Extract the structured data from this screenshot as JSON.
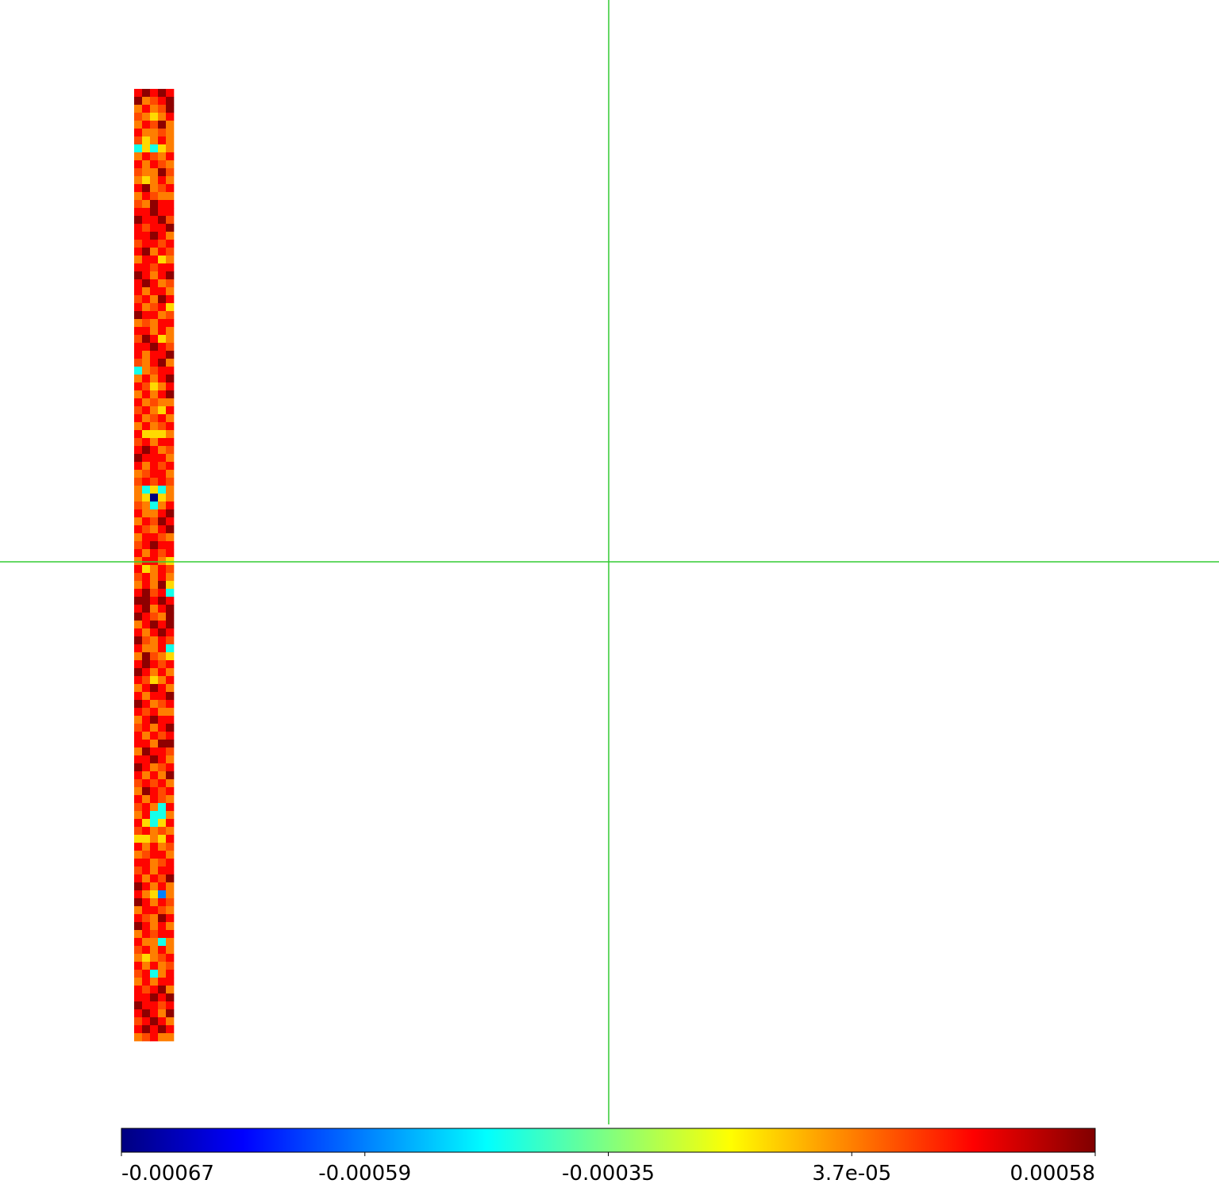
{
  "chart_data": {
    "type": "heatmap",
    "colormap": "jet",
    "colorbar_ticks": [
      -0.00067,
      -0.00059,
      -0.00035,
      {
        "value": 3.7e-05,
        "label": "3.7e-05"
      },
      0.00058
    ],
    "values": [
      [
        0.0003,
        0.00055,
        0.0003,
        0.00055,
        0.0003
      ],
      [
        0.00055,
        4e-05,
        0.00015,
        0.0003,
        0.00055
      ],
      [
        4e-05,
        0.0003,
        4e-05,
        0.00015,
        0.00055
      ],
      [
        0.00015,
        4e-05,
        -0.0001,
        4e-05,
        0.0003
      ],
      [
        4e-05,
        0.0003,
        0.00015,
        0.00055,
        4e-05
      ],
      [
        0.0003,
        4e-05,
        4e-05,
        0.00015,
        4e-05
      ],
      [
        0.00015,
        -0.0001,
        4e-05,
        0.0003,
        4e-05
      ],
      [
        -0.00045,
        -0.0001,
        -0.00045,
        -0.0001,
        4e-05
      ],
      [
        4e-05,
        0.0003,
        0.00015,
        4e-05,
        0.0003
      ],
      [
        0.0003,
        4e-05,
        0.0003,
        0.00015,
        4e-05
      ],
      [
        0.00015,
        4e-05,
        4e-05,
        0.00055,
        0.00015
      ],
      [
        4e-05,
        -0.0001,
        4e-05,
        0.0003,
        4e-05
      ],
      [
        0.0003,
        0.00055,
        4e-05,
        0.00015,
        0.0003
      ],
      [
        4e-05,
        0.0003,
        0.00015,
        4e-05,
        4e-05
      ],
      [
        0.00015,
        4e-05,
        0.00055,
        0.0003,
        0.0003
      ],
      [
        0.0003,
        0.0003,
        0.00055,
        0.0003,
        0.0003
      ],
      [
        0.00055,
        0.0003,
        0.0003,
        0.00055,
        0.00015
      ],
      [
        0.0003,
        0.00015,
        0.0003,
        0.0003,
        0.00055
      ],
      [
        0.0003,
        0.0003,
        0.00055,
        0.0003,
        4e-05
      ],
      [
        0.00015,
        0.0003,
        0.0003,
        0.00015,
        0.0003
      ],
      [
        0.0003,
        0.00055,
        4e-05,
        0.0003,
        0.00015
      ],
      [
        4e-05,
        0.0003,
        0.0003,
        -0.0001,
        4e-05
      ],
      [
        0.0003,
        0.0003,
        0.00015,
        0.0003,
        0.0003
      ],
      [
        0.00055,
        0.0003,
        4e-05,
        0.0003,
        0.00055
      ],
      [
        0.0003,
        0.00055,
        0.0003,
        4e-05,
        0.00015
      ],
      [
        0.0003,
        4e-05,
        0.0003,
        0.0003,
        4e-05
      ],
      [
        0.00015,
        0.0003,
        4e-05,
        0.00055,
        0.0003
      ],
      [
        0.0003,
        4e-05,
        0.00015,
        0.0003,
        -0.0001
      ],
      [
        0.00055,
        0.0003,
        0.0003,
        4e-05,
        0.00015
      ],
      [
        4e-05,
        0.00015,
        4e-05,
        0.0003,
        0.0003
      ],
      [
        0.0003,
        0.0003,
        4e-05,
        0.0003,
        4e-05
      ],
      [
        0.00015,
        0.00055,
        0.0003,
        -0.0001,
        4e-05
      ],
      [
        0.0003,
        0.0003,
        0.00055,
        0.0003,
        0.00015
      ],
      [
        0.0003,
        4e-05,
        0.0003,
        0.0003,
        0.00055
      ],
      [
        0.00015,
        4e-05,
        0.0003,
        0.00055,
        4e-05
      ],
      [
        -0.00045,
        4e-05,
        0.00015,
        0.0003,
        0.0003
      ],
      [
        4e-05,
        0.0003,
        4e-05,
        0.0003,
        0.00055
      ],
      [
        0.0003,
        0.00015,
        -0.0001,
        4e-05,
        0.0003
      ],
      [
        4e-05,
        0.0003,
        4e-05,
        0.0003,
        0.00055
      ],
      [
        0.0003,
        4e-05,
        0.00015,
        4e-05,
        4e-05
      ],
      [
        0.00015,
        0.0003,
        4e-05,
        -0.0001,
        0.0003
      ],
      [
        0.0003,
        4e-05,
        0.00015,
        0.0003,
        4e-05
      ],
      [
        4e-05,
        0.0003,
        4e-05,
        0.00015,
        0.0003
      ],
      [
        0.0003,
        -0.0001,
        -0.0001,
        -0.0001,
        4e-05
      ],
      [
        0.00015,
        0.0003,
        4e-05,
        0.0003,
        0.0003
      ],
      [
        0.0003,
        0.00055,
        0.0003,
        4e-05,
        0.00015
      ],
      [
        0.00055,
        0.0003,
        0.0003,
        0.0003,
        4e-05
      ],
      [
        0.0003,
        4e-05,
        0.0003,
        0.00015,
        0.0003
      ],
      [
        4e-05,
        0.00015,
        0.0003,
        0.0003,
        4e-05
      ],
      [
        0.00015,
        0.0003,
        0.00015,
        0.0003,
        0.00015
      ],
      [
        4e-05,
        -0.00045,
        -0.0001,
        -0.00045,
        4e-05
      ],
      [
        4e-05,
        -0.0001,
        -0.00067,
        -0.0001,
        4e-05
      ],
      [
        0.00015,
        4e-05,
        -0.00045,
        4e-05,
        0.0003
      ],
      [
        0.0003,
        4e-05,
        4e-05,
        0.0003,
        0.00055
      ],
      [
        4e-05,
        0.0003,
        0.00015,
        0.00055,
        0.0003
      ],
      [
        0.0003,
        0.00015,
        4e-05,
        0.0003,
        0.00055
      ],
      [
        4e-05,
        0.0003,
        0.0003,
        0.00015,
        4e-05
      ],
      [
        0.00015,
        0.0003,
        0.00055,
        0.0003,
        0.0003
      ],
      [
        0.0003,
        4e-05,
        0.0003,
        0.00015,
        0.0003
      ],
      [
        4e-05,
        0.0003,
        0.0003,
        4e-05,
        -0.0001
      ],
      [
        0.0003,
        -0.0001,
        4e-05,
        0.0003,
        0.00015
      ],
      [
        0.00015,
        0.0003,
        4e-05,
        0.0003,
        4e-05
      ],
      [
        4e-05,
        0.0003,
        4e-05,
        0.00055,
        -0.0001
      ],
      [
        0.0003,
        0.00055,
        0.00015,
        0.0003,
        -0.00045
      ],
      [
        0.00055,
        0.00055,
        0.0003,
        0.00055,
        0.0003
      ],
      [
        0.0003,
        0.00055,
        4e-05,
        0.0003,
        0.00055
      ],
      [
        0.00055,
        0.0003,
        0.00015,
        4e-05,
        0.00055
      ],
      [
        4e-05,
        0.0003,
        0.00055,
        0.0003,
        0.00055
      ],
      [
        0.0003,
        4e-05,
        0.0003,
        0.00055,
        0.0003
      ],
      [
        0.00055,
        0.00015,
        4e-05,
        0.0003,
        0.00015
      ],
      [
        0.0003,
        4e-05,
        4e-05,
        0.0003,
        -0.00045
      ],
      [
        4e-05,
        0.00055,
        0.00015,
        4e-05,
        -0.0001
      ],
      [
        0.0003,
        0.00055,
        0.0003,
        0.00015,
        0.0003
      ],
      [
        0.00055,
        0.0003,
        4e-05,
        0.0003,
        4e-05
      ],
      [
        0.0003,
        0.00015,
        -0.0001,
        4e-05,
        0.0003
      ],
      [
        4e-05,
        0.0003,
        0.00055,
        0.0003,
        4e-05
      ],
      [
        0.0003,
        4e-05,
        0.0003,
        0.0003,
        0.00055
      ],
      [
        0.00055,
        0.0003,
        4e-05,
        0.00015,
        0.0003
      ],
      [
        0.0003,
        0.00015,
        0.0003,
        4e-05,
        4e-05
      ],
      [
        4e-05,
        0.0003,
        0.00055,
        0.0003,
        0.0003
      ],
      [
        0.00015,
        0.0003,
        4e-05,
        0.0003,
        0.00055
      ],
      [
        0.0003,
        4e-05,
        0.0003,
        0.00015,
        0.0003
      ],
      [
        0.0003,
        0.0003,
        4e-05,
        0.00055,
        0.00055
      ],
      [
        4e-05,
        0.00055,
        0.0003,
        0.0003,
        0.00015
      ],
      [
        0.0003,
        0.0003,
        0.00055,
        0.0003,
        4e-05
      ],
      [
        0.00055,
        0.0003,
        4e-05,
        0.00015,
        0.0003
      ],
      [
        0.0003,
        4e-05,
        0.0003,
        4e-05,
        0.00055
      ],
      [
        0.00015,
        0.0003,
        0.00015,
        0.0003,
        4e-05
      ],
      [
        4e-05,
        0.00055,
        0.0003,
        0.00015,
        0.0003
      ],
      [
        0.0003,
        4e-05,
        0.0003,
        0.00015,
        4e-05
      ],
      [
        0.00015,
        0.0003,
        4e-05,
        -0.00045,
        0.0003
      ],
      [
        4e-05,
        0.0003,
        -0.00045,
        -0.00045,
        4e-05
      ],
      [
        0.0003,
        -0.0001,
        -0.00045,
        -0.0001,
        0.0003
      ],
      [
        0.00015,
        0.0003,
        4e-05,
        0.00015,
        4e-05
      ],
      [
        -0.0001,
        -0.0001,
        4e-05,
        -0.0001,
        0.0003
      ],
      [
        0.0003,
        4e-05,
        0.0003,
        4e-05,
        0.00015
      ],
      [
        4e-05,
        0.00015,
        0.0003,
        0.0003,
        4e-05
      ],
      [
        0.0003,
        0.0003,
        4e-05,
        0.00015,
        0.0003
      ],
      [
        0.00015,
        0.0003,
        4e-05,
        0.0003,
        0.0003
      ],
      [
        0.0003,
        4e-05,
        0.0003,
        0.00015,
        0.00055
      ],
      [
        0.00055,
        0.0003,
        4e-05,
        0.0003,
        4e-05
      ],
      [
        0.0003,
        4e-05,
        -0.0001,
        -0.00059,
        4e-05
      ],
      [
        0.00055,
        0.0003,
        4e-05,
        0.0003,
        0.00015
      ],
      [
        4e-05,
        0.0003,
        0.0003,
        0.00015,
        4e-05
      ],
      [
        0.0003,
        0.00015,
        4e-05,
        0.00055,
        0.0003
      ],
      [
        0.00055,
        0.0003,
        4e-05,
        0.0003,
        4e-05
      ],
      [
        4e-05,
        0.0003,
        0.00015,
        0.0003,
        0.0003
      ],
      [
        0.0003,
        4e-05,
        4e-05,
        -0.00045,
        4e-05
      ],
      [
        0.00015,
        0.0003,
        4e-05,
        0.0003,
        4e-05
      ],
      [
        4e-05,
        -0.0001,
        4e-05,
        0.00015,
        0.0003
      ],
      [
        0.0003,
        4e-05,
        0.0003,
        4e-05,
        0.00015
      ],
      [
        0.00015,
        0.0003,
        -0.00045,
        4e-05,
        0.0003
      ],
      [
        4e-05,
        0.0003,
        4e-05,
        0.0003,
        0.0003
      ],
      [
        0.0003,
        0.00015,
        0.0003,
        0.00055,
        4e-05
      ],
      [
        0.0003,
        0.0003,
        0.00055,
        0.0003,
        0.00055
      ],
      [
        0.00055,
        0.0003,
        0.0003,
        0.00015,
        0.0003
      ],
      [
        0.0003,
        0.00055,
        0.0003,
        4e-05,
        0.00055
      ],
      [
        0.00015,
        0.0003,
        0.00055,
        0.0003,
        4e-05
      ],
      [
        0.0003,
        0.00055,
        0.0003,
        0.00055,
        0.0003
      ],
      [
        4e-05,
        0.00015,
        0.0003,
        4e-05,
        4e-05
      ]
    ]
  }
}
